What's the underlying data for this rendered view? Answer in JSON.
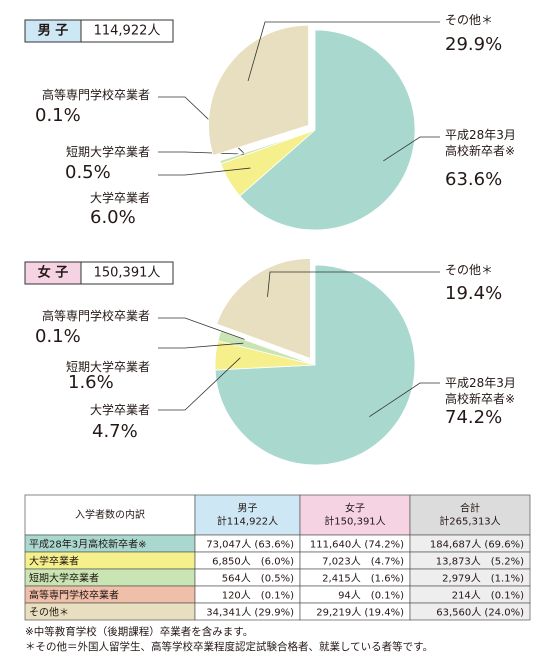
{
  "chart_data": [
    {
      "type": "pie",
      "title": "男 子",
      "subtitle": "114,922人",
      "categories": [
        "平成28年3月\n高校新卒者※",
        "大学卒業者",
        "短期大学卒業者",
        "高等専門学校卒業者",
        "その他＊"
      ],
      "values": [
        63.6,
        6.0,
        0.5,
        0.1,
        29.9
      ],
      "value_labels": [
        "63.6%",
        "6.0%",
        "0.5%",
        "0.1%",
        "29.9%"
      ],
      "colors": [
        "#a9d8cf",
        "#f6f08c",
        "#c9e5b3",
        "#efbfa9",
        "#e7dfbf"
      ],
      "title_color": "#cde7f5"
    },
    {
      "type": "pie",
      "title": "女 子",
      "subtitle": "150,391人",
      "categories": [
        "平成28年3月\n高校新卒者※",
        "大学卒業者",
        "短期大学卒業者",
        "高等専門学校卒業者",
        "その他＊"
      ],
      "values": [
        74.2,
        4.7,
        1.6,
        0.1,
        19.4
      ],
      "value_labels": [
        "74.2%",
        "4.7%",
        "1.6%",
        "0.1%",
        "19.4%"
      ],
      "colors": [
        "#a9d8cf",
        "#f6f08c",
        "#c9e5b3",
        "#efbfa9",
        "#e7dfbf"
      ],
      "title_color": "#f6d3e3"
    }
  ],
  "table": {
    "header": [
      [
        "入学者数の内訳"
      ],
      [
        "男子",
        "計114,922人"
      ],
      [
        "女子",
        "計150,391人"
      ],
      [
        "合計",
        "計265,313人"
      ]
    ],
    "rows": [
      [
        "平成28年3月高校新卒者※",
        "73,047人 (63.6%)",
        "111,640人 (74.2%)",
        "184,687人 (69.6%)"
      ],
      [
        "大学卒業者",
        "6,850人　(6.0%)",
        "7,023人　(4.7%)",
        "13,873人　(5.2%)"
      ],
      [
        "短期大学卒業者",
        "564人　(0.5%)",
        "2,415人　(1.6%)",
        "2,979人　(1.1%)"
      ],
      [
        "高等専門学校卒業者",
        "120人　(0.1%)",
        "94人　(0.1%)",
        "214人　(0.1%)"
      ],
      [
        "その他＊",
        "34,341人 (29.9%)",
        "29,219人 (19.4%)",
        "63,560人 (24.0%)"
      ]
    ]
  },
  "notes": [
    "※中等教育学校（後期課程）卒業者を含みます。",
    "＊その他＝外国人留学生、高等学校卒業程度認定試験合格者、就業している者等です。"
  ]
}
